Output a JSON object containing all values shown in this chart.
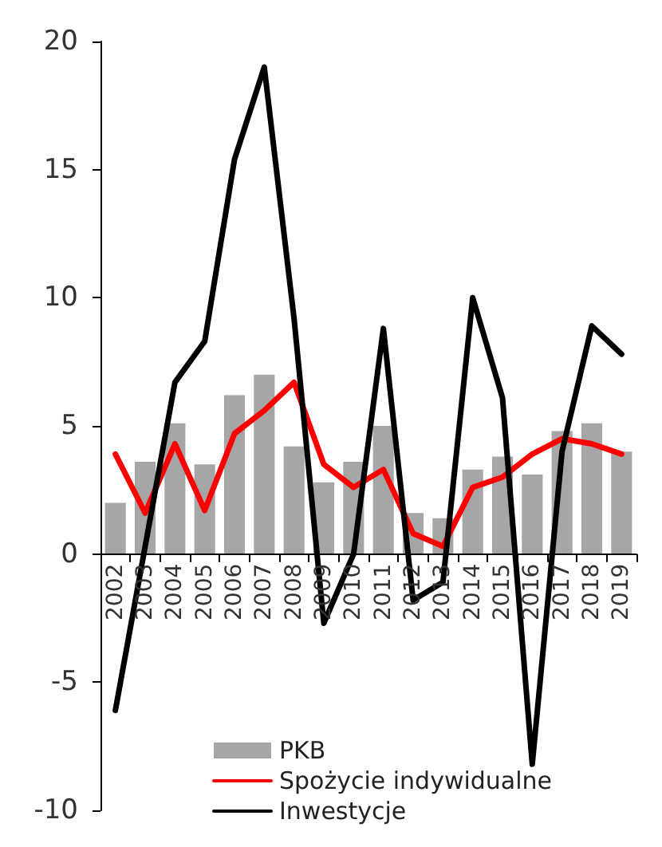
{
  "chart_data": {
    "type": "bar",
    "categories": [
      "2002",
      "2003",
      "2004",
      "2005",
      "2006",
      "2007",
      "2008",
      "2009",
      "2010",
      "2011",
      "2012",
      "2013",
      "2014",
      "2015",
      "2016",
      "2017",
      "2018",
      "2019"
    ],
    "series": [
      {
        "name": "PKB",
        "color": "#a6a6a6",
        "values": [
          2.0,
          3.6,
          5.1,
          3.5,
          6.2,
          7.0,
          4.2,
          2.8,
          3.6,
          5.0,
          1.6,
          1.4,
          3.3,
          3.8,
          3.1,
          4.8,
          5.1,
          4.0
        ]
      },
      {
        "name": "Spożycie indywidualne",
        "type": "line",
        "color": "#ff0000",
        "values": [
          3.9,
          1.6,
          4.3,
          1.7,
          4.7,
          5.6,
          6.7,
          3.5,
          2.6,
          3.3,
          0.8,
          0.3,
          2.6,
          3.0,
          3.9,
          4.5,
          4.3,
          3.9
        ]
      },
      {
        "name": "Inwestycje",
        "type": "line",
        "color": "#000000",
        "values": [
          -6.1,
          0.3,
          6.7,
          8.3,
          15.4,
          19.0,
          9.2,
          -2.7,
          0.0,
          8.8,
          -1.8,
          -1.1,
          10.0,
          6.1,
          -8.2,
          4.0,
          8.9,
          7.8
        ]
      }
    ],
    "ylim": [
      -10,
      20
    ],
    "yticks": [
      -10,
      -5,
      0,
      5,
      10,
      15,
      20
    ],
    "grid": false,
    "legend": "bottom",
    "marker": "none",
    "line_style": "solid"
  }
}
